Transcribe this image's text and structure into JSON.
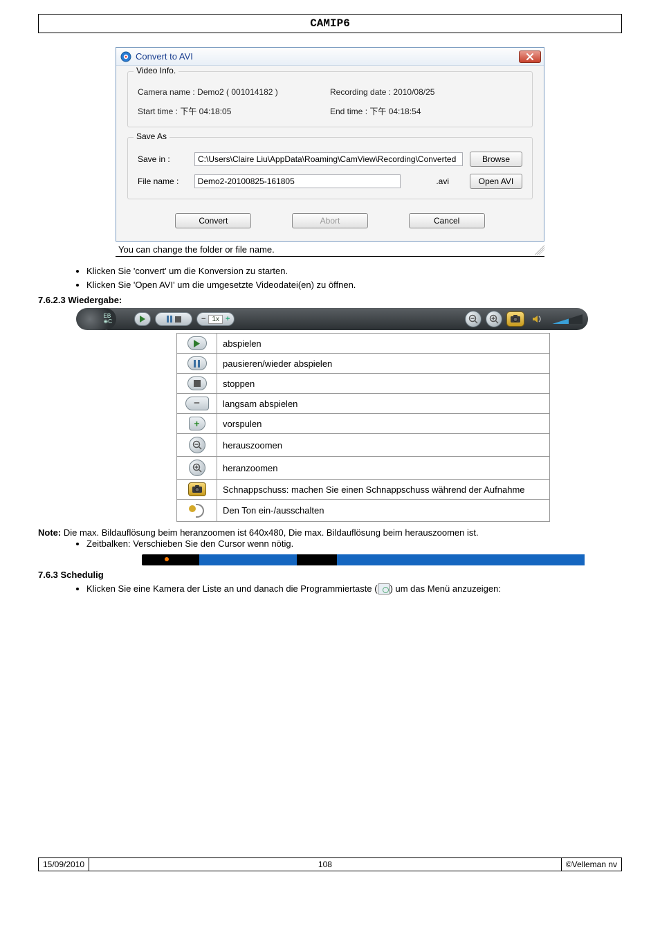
{
  "page": {
    "header": "CAMIP6",
    "footer_date": "15/09/2010",
    "footer_page": "108",
    "footer_copy": "©Velleman nv"
  },
  "dialog": {
    "title": "Convert to AVI",
    "video_info_label": "Video Info.",
    "camera_name_label": "Camera name : Demo2 ( 001014182 )",
    "recording_date_label": "Recording date : 2010/08/25",
    "start_time_label": "Start time : 下午 04:18:05",
    "end_time_label": "End time : 下午 04:18:54",
    "save_as_label": "Save As",
    "save_in_label": "Save in :",
    "save_in_value": "C:\\Users\\Claire Liu\\AppData\\Roaming\\CamView\\Recording\\Converted",
    "browse_label": "Browse",
    "file_name_label": "File name :",
    "file_name_value": "Demo2-20100825-161805",
    "extension_label": ".avi",
    "open_avi_label": "Open AVI",
    "convert_label": "Convert",
    "abort_label": "Abort",
    "cancel_label": "Cancel",
    "caption": "You can change the folder or file name."
  },
  "text": {
    "bullet_convert": "Klicken Sie 'convert' um die Konversion zu starten.",
    "bullet_openavi": "Klicken Sie 'Open AVI' um die umgesetzte Videodatei(en) zu öffnen.",
    "h_wiedergabe": "7.6.2.3 Wiedergabe:",
    "note_label": "Note:",
    "note_body": " Die max. Bildauflösung beim heranzoomen ist 640x480, Die max. Bildauflösung beim herauszoomen ist.",
    "bullet_timeline": "Zeitbalken: Verschieben Sie den Cursor wenn nötig.",
    "h_sched": "7.6.3 Schedulig",
    "bullet_sched_a": "Klicken Sie eine Kamera der Liste an und danach die Programmiertaste (",
    "bullet_sched_b": ") um das Menü anzuzeigen:"
  },
  "playback_rows": [
    {
      "icon": "play",
      "label": "abspielen"
    },
    {
      "icon": "pause",
      "label": "pausieren/wieder abspielen"
    },
    {
      "icon": "stop",
      "label": "stoppen"
    },
    {
      "icon": "minus",
      "label": "langsam abspielen"
    },
    {
      "icon": "plus",
      "label": "vorspulen"
    },
    {
      "icon": "zoom-out",
      "label": "herauszoomen"
    },
    {
      "icon": "zoom-in",
      "label": "heranzoomen"
    },
    {
      "icon": "camera",
      "label": "Schnappschuss: machen Sie einen Schnappschuss während der Aufnahme"
    },
    {
      "icon": "speaker",
      "label": "Den Ton ein-/ausschalten"
    }
  ],
  "player_bar": {
    "speed_label": "1x",
    "colors": {
      "bg_top": "#5a5f63",
      "bg_bot": "#2b3033",
      "accent": "#3aa0d8",
      "cam": "#c79a1e"
    }
  },
  "timeline": {
    "track_color": "#000000",
    "segment_color": "#1566c0",
    "marker_color": "#ff7a00",
    "segments": [
      {
        "left_pct": 13,
        "width_pct": 22
      },
      {
        "left_pct": 44,
        "width_pct": 56
      }
    ],
    "marker_left_pct": 5
  }
}
